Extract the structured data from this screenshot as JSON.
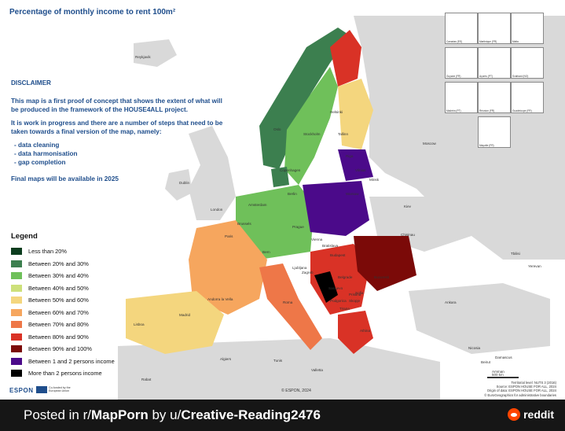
{
  "title": "Percentage of monthly income to rent 100m²",
  "disclaimer": {
    "heading": "DISCLAIMER",
    "paragraph1": "This map is a first proof of concept that shows the extent of what will be produced in the framework of the HOUSE4ALL project.",
    "paragraph2": "It is work in progress and there are a number of steps that need to be taken towards a final version of the map, namely:",
    "steps": [
      "data cleaning",
      "data harmonisation",
      "gap completion"
    ],
    "final": "Final maps will be available in 2025"
  },
  "legend": {
    "title": "Legend",
    "items": [
      {
        "label": "Less than 20%",
        "color": "#0b3d1e"
      },
      {
        "label": "Between 20% and 30%",
        "color": "#3c7f4f"
      },
      {
        "label": "Between 30% and 40%",
        "color": "#6fc05a"
      },
      {
        "label": "Between 40% and 50%",
        "color": "#cde07a"
      },
      {
        "label": "Between 50% and 60%",
        "color": "#f4d67e"
      },
      {
        "label": "Between 60% and 70%",
        "color": "#f6a65e"
      },
      {
        "label": "Between 70% and 80%",
        "color": "#ee7748"
      },
      {
        "label": "Between 80% and 90%",
        "color": "#d93226"
      },
      {
        "label": "Between 90% and 100%",
        "color": "#7b0a08"
      },
      {
        "label": "Between 1 and 2 persons income",
        "color": "#4b0a8a"
      },
      {
        "label": "More than 2 persons income",
        "color": "#000000"
      }
    ]
  },
  "cities": [
    "Reykjavik",
    "Oslo",
    "Stockholm",
    "Helsinki",
    "Tallinn",
    "Riga",
    "Vilnius",
    "Moscow",
    "Copenhagen",
    "Dublin",
    "London",
    "Amsterdam",
    "Brussels",
    "Berlin",
    "Warsaw",
    "Minsk",
    "Kiev",
    "Prague",
    "Paris",
    "Bern",
    "Vienna",
    "Bratislava",
    "Budapest",
    "Chisinau",
    "Ljubljana",
    "Zagreb",
    "Belgrade",
    "Bucuresti",
    "Sarajevo",
    "Sofia",
    "Skopje",
    "Tirana",
    "Podgorica",
    "Pristina",
    "Madrid",
    "Lisboa",
    "Andorra la Vella",
    "Roma",
    "Valletta",
    "Algiers",
    "Tunis",
    "Rabat",
    "Athina",
    "Ankara",
    "Tbilisi",
    "Yerevan",
    "Nicosia",
    "Beirut",
    "Damascus",
    "Amman"
  ],
  "insets": [
    "Canarias (ES)",
    "Martinique (FR)",
    "Malta",
    "Guyane (FR)",
    "Açores (PT)",
    "Svalbard (NO)",
    "Madeira (PT)",
    "Réunion (FR)",
    "Guadeloupe (FR)",
    "Mayotte (FR)"
  ],
  "footer_meta": {
    "espon": "ESPON",
    "eu_note": "Co-funded by the European Union",
    "copyright": "© ESPON, 2024",
    "scale": "500 km",
    "source_lines": [
      "Territorial level: NUTS 3 (2016)",
      "Source: ESPON HOUSE FOR ALL, 2024",
      "Origin of data: ESPON HOUSE FOR ALL, 2024",
      "© EuroGeographics for administrative boundaries"
    ]
  },
  "post": {
    "prefix": "Posted in r/",
    "subreddit": "MapPorn",
    "by": " by u/",
    "user": "Creative-Reading2476",
    "brand": "reddit",
    "brand_color": "#ff4500"
  }
}
